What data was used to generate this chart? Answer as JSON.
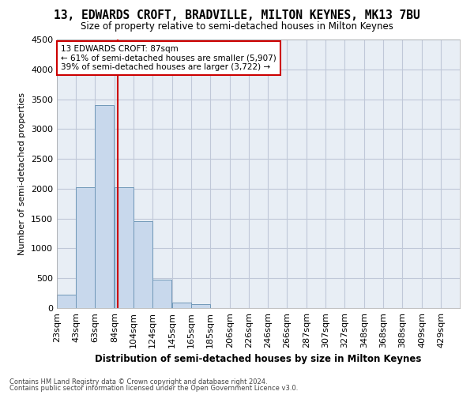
{
  "title": "13, EDWARDS CROFT, BRADVILLE, MILTON KEYNES, MK13 7BU",
  "subtitle": "Size of property relative to semi-detached houses in Milton Keynes",
  "xlabel": "Distribution of semi-detached houses by size in Milton Keynes",
  "ylabel": "Number of semi-detached properties",
  "footer_line1": "Contains HM Land Registry data © Crown copyright and database right 2024.",
  "footer_line2": "Contains public sector information licensed under the Open Government Licence v3.0.",
  "annotation_title": "13 EDWARDS CROFT: 87sqm",
  "annotation_line1": "← 61% of semi-detached houses are smaller (5,907)",
  "annotation_line2": "39% of semi-detached houses are larger (3,722) →",
  "property_size": 87,
  "bar_color": "#c8d8ec",
  "bar_edge_color": "#7098b8",
  "vline_color": "#cc0000",
  "annotation_box_color": "#ffffff",
  "annotation_box_edge": "#cc0000",
  "categories": [
    "23sqm",
    "43sqm",
    "63sqm",
    "84sqm",
    "104sqm",
    "124sqm",
    "145sqm",
    "165sqm",
    "185sqm",
    "206sqm",
    "226sqm",
    "246sqm",
    "266sqm",
    "287sqm",
    "307sqm",
    "327sqm",
    "348sqm",
    "368sqm",
    "388sqm",
    "409sqm",
    "429sqm"
  ],
  "bin_edges": [
    23,
    43,
    63,
    84,
    104,
    124,
    145,
    165,
    185,
    206,
    226,
    246,
    266,
    287,
    307,
    327,
    348,
    368,
    388,
    409,
    429
  ],
  "values": [
    230,
    2020,
    3400,
    2020,
    1460,
    470,
    90,
    60,
    0,
    0,
    0,
    0,
    0,
    0,
    0,
    0,
    0,
    0,
    0,
    0
  ],
  "ylim": [
    0,
    4500
  ],
  "yticks": [
    0,
    500,
    1000,
    1500,
    2000,
    2500,
    3000,
    3500,
    4000,
    4500
  ],
  "background_color": "#ffffff",
  "grid_color": "#c0c8d8",
  "axes_bg_color": "#e8eef5"
}
